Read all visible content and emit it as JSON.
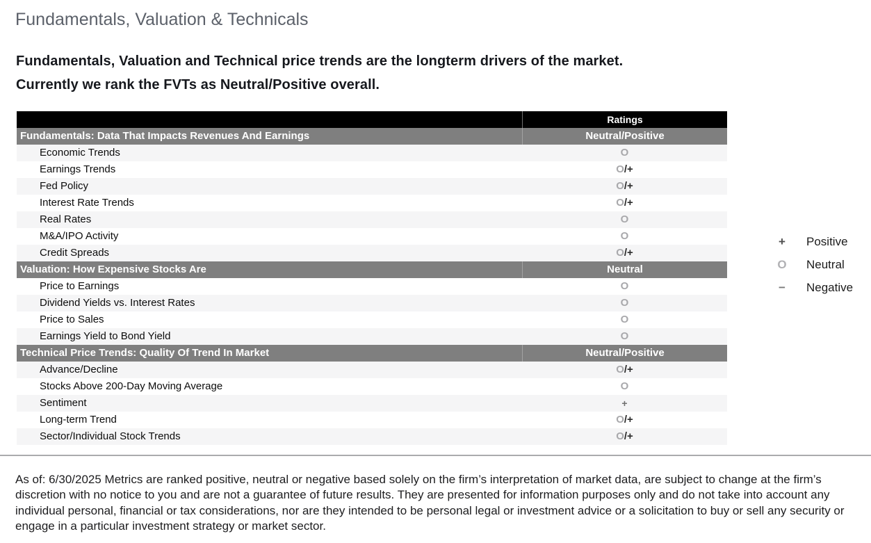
{
  "page": {
    "title": "Fundamentals, Valuation & Technicals",
    "intro": {
      "line1": "Fundamentals, Valuation and Technical price trends are the longterm drivers of the market.",
      "line2": "Currently we rank the FVTs as Neutral/Positive overall."
    },
    "disclaimer": "As of: 6/30/2025 Metrics are ranked positive, neutral or negative based solely on the firm’s interpretation of market data, are subject to change at the firm’s discretion with no notice to you and are not a guarantee of future results. They are presented for information purposes only and do not take into account any individual personal, financial or tax considerations, nor are they intended to be personal legal or investment advice or a solicitation to buy or sell any security or engage in a particular investment strategy or market sector."
  },
  "table": {
    "ratings_column_header": "Ratings",
    "sections": [
      {
        "title": "Fundamentals: Data That Impacts Revenues And Earnings",
        "overall_rating": "Neutral/Positive",
        "first_row_shaded": true,
        "rows": [
          {
            "label": "Economic Trends",
            "rating": "O"
          },
          {
            "label": "Earnings Trends",
            "rating": "O/+"
          },
          {
            "label": "Fed Policy",
            "rating": "O/+"
          },
          {
            "label": "Interest Rate Trends",
            "rating": "O/+"
          },
          {
            "label": "Real Rates",
            "rating": "O"
          },
          {
            "label": "M&A/IPO Activity",
            "rating": "O"
          },
          {
            "label": "Credit Spreads",
            "rating": "O/+"
          }
        ]
      },
      {
        "title": "Valuation: How Expensive Stocks Are",
        "overall_rating": "Neutral",
        "first_row_shaded": false,
        "rows": [
          {
            "label": "Price to Earnings",
            "rating": "O"
          },
          {
            "label": "Dividend Yields vs. Interest Rates",
            "rating": "O"
          },
          {
            "label": "Price to Sales",
            "rating": "O"
          },
          {
            "label": "Earnings Yield to Bond Yield",
            "rating": "O"
          }
        ]
      },
      {
        "title": "Technical Price Trends: Quality Of Trend In Market",
        "overall_rating": "Neutral/Positive",
        "first_row_shaded": true,
        "rows": [
          {
            "label": "Advance/Decline",
            "rating": "O/+"
          },
          {
            "label": "Stocks Above 200-Day Moving Average",
            "rating": "O"
          },
          {
            "label": "Sentiment",
            "rating": "+"
          },
          {
            "label": "Long-term Trend",
            "rating": "O/+"
          },
          {
            "label": "Sector/Individual Stock Trends",
            "rating": "O/+"
          }
        ]
      }
    ]
  },
  "legend": {
    "items": [
      {
        "symbol": "+",
        "label": "Positive"
      },
      {
        "symbol": "O",
        "label": "Neutral"
      },
      {
        "symbol": "−",
        "label": "Negative"
      }
    ]
  },
  "colors": {
    "header_black": "#000000",
    "section_gray": "#7f7f7f",
    "row_stripe": "#f5f5f6",
    "neutral_symbol_gray": "#a8a8ab",
    "positive_lean_dark": "#2b2b2b",
    "title_gray": "#5c616a",
    "divider_gray": "#aaabad"
  }
}
